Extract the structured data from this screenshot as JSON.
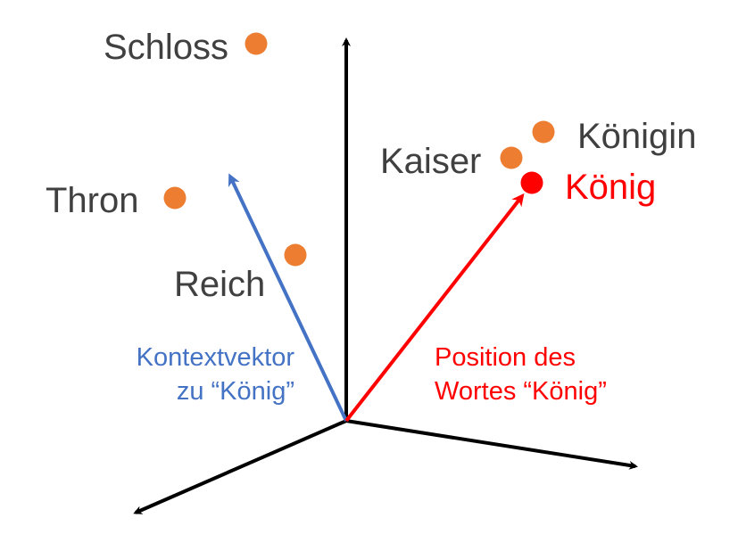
{
  "colors": {
    "axis": "#000000",
    "word_point": "#ed7d31",
    "word_text": "#404040",
    "target": "#ff0000",
    "context_vector": "#4472c4"
  },
  "words": [
    {
      "id": "schloss",
      "label": "Schloss"
    },
    {
      "id": "thron",
      "label": "Thron"
    },
    {
      "id": "reich",
      "label": "Reich"
    },
    {
      "id": "kaiser",
      "label": "Kaiser"
    },
    {
      "id": "koenigin",
      "label": "Königin"
    },
    {
      "id": "koenig",
      "label": "König",
      "highlight": true
    }
  ],
  "captions": {
    "context_line1": "Kontextvektor",
    "context_line2": "zu “König”",
    "position_line1": "Position des",
    "position_line2": "Wortes “König”"
  }
}
